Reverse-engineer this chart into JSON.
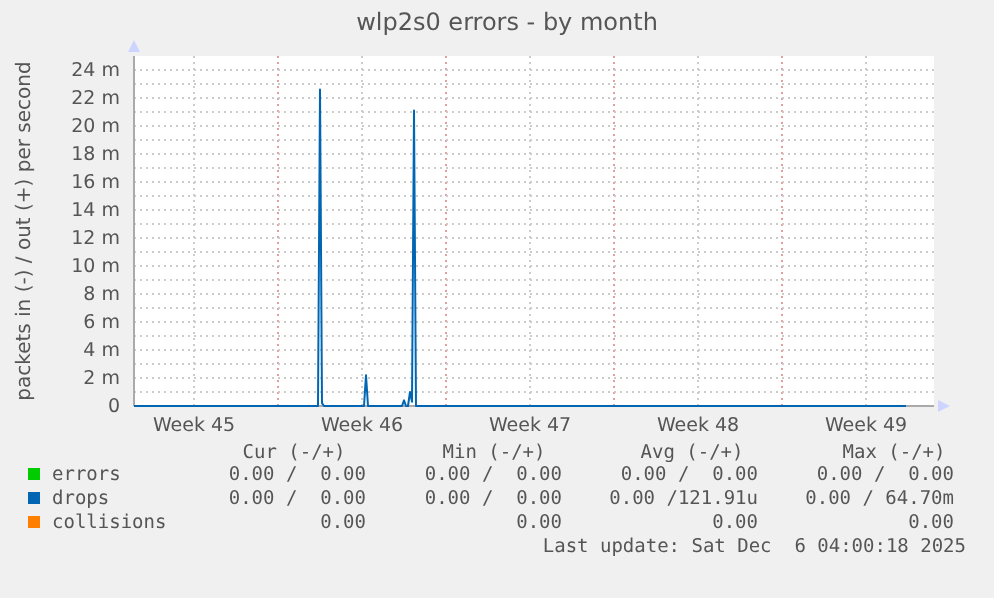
{
  "chart_data": {
    "type": "line",
    "title": "wlp2s0 errors - by month",
    "ylabel": "packets in (-) / out (+) per second",
    "x": [
      "2025-11-04T00:00",
      "2025-11-11T16:00",
      "2025-11-11T18:00",
      "2025-11-11T20:00",
      "2025-11-11T22:00",
      "2025-11-13T14:00",
      "2025-11-13T16:00",
      "2025-11-13T18:00",
      "2025-11-15T04:00",
      "2025-11-15T06:00",
      "2025-11-15T08:00",
      "2025-11-15T10:00",
      "2025-11-15T12:00",
      "2025-11-15T14:00",
      "2025-11-15T16:00",
      "2025-11-15T18:00",
      "2025-12-06T04:00"
    ],
    "series": [
      {
        "name": "errors",
        "color": "#00cc00",
        "values": [
          null,
          null,
          null,
          null,
          null,
          null,
          null,
          null,
          null,
          null,
          null,
          null,
          null,
          null,
          null,
          null,
          null
        ]
      },
      {
        "name": "collisions",
        "color": "#ff8000",
        "values": [
          null,
          null,
          null,
          null,
          null,
          null,
          null,
          null,
          null,
          null,
          null,
          null,
          null,
          null,
          null,
          null,
          null
        ]
      },
      {
        "name": "drops",
        "color": "#0066b3",
        "values": [
          0,
          0,
          22.6,
          0.2,
          0,
          0,
          2.2,
          0,
          0,
          0.4,
          0,
          0,
          1.0,
          0.3,
          21.1,
          0,
          0
        ]
      }
    ],
    "xlim": [
      "2025-11-04T00:00",
      "2025-12-07T08:00"
    ],
    "xticks": [
      {
        "value": "2025-11-06T12:00",
        "label": "Week 45"
      },
      {
        "value": "2025-11-10T00:00",
        "label": null
      },
      {
        "value": "2025-11-13T12:00",
        "label": "Week 46"
      },
      {
        "value": "2025-11-17T00:00",
        "label": null
      },
      {
        "value": "2025-11-20T12:00",
        "label": "Week 47"
      },
      {
        "value": "2025-11-24T00:00",
        "label": null
      },
      {
        "value": "2025-11-27T12:00",
        "label": "Week 48"
      },
      {
        "value": "2025-12-01T00:00",
        "label": null
      },
      {
        "value": "2025-12-04T12:00",
        "label": "Week 49"
      }
    ],
    "ylim": [
      0,
      25
    ],
    "yticks": [
      {
        "value": 0,
        "label": "0"
      },
      {
        "value": 1,
        "label": null
      },
      {
        "value": 2,
        "label": "2 m"
      },
      {
        "value": 3,
        "label": null
      },
      {
        "value": 4,
        "label": "4 m"
      },
      {
        "value": 5,
        "label": null
      },
      {
        "value": 6,
        "label": "6 m"
      },
      {
        "value": 7,
        "label": null
      },
      {
        "value": 8,
        "label": "8 m"
      },
      {
        "value": 9,
        "label": null
      },
      {
        "value": 10,
        "label": "10 m"
      },
      {
        "value": 11,
        "label": null
      },
      {
        "value": 12,
        "label": "12 m"
      },
      {
        "value": 13,
        "label": null
      },
      {
        "value": 14,
        "label": "14 m"
      },
      {
        "value": 15,
        "label": null
      },
      {
        "value": 16,
        "label": "16 m"
      },
      {
        "value": 17,
        "label": null
      },
      {
        "value": 18,
        "label": "18 m"
      },
      {
        "value": 19,
        "label": null
      },
      {
        "value": 20,
        "label": "20 m"
      },
      {
        "value": 21,
        "label": null
      },
      {
        "value": 22,
        "label": "22 m"
      },
      {
        "value": 23,
        "label": null
      },
      {
        "value": 24,
        "label": "24 m"
      }
    ],
    "grid": true,
    "legend": "bottom",
    "annotations": [
      "Cur (-/+)",
      "Min (-/+)",
      "Avg (-/+)",
      "Max (-/+)",
      "0.00 /  0.00",
      "0.00 /  0.00",
      "0.00 /  0.00",
      "0.00 /  0.00",
      "0.00 /  0.00",
      "0.00 /  0.00",
      "0.00 /121.91u",
      "0.00 / 64.70m",
      "0.00",
      "0.00",
      "0.00",
      "0.00",
      "Last update: Sat Dec  6 04:00:18 2025"
    ]
  }
}
